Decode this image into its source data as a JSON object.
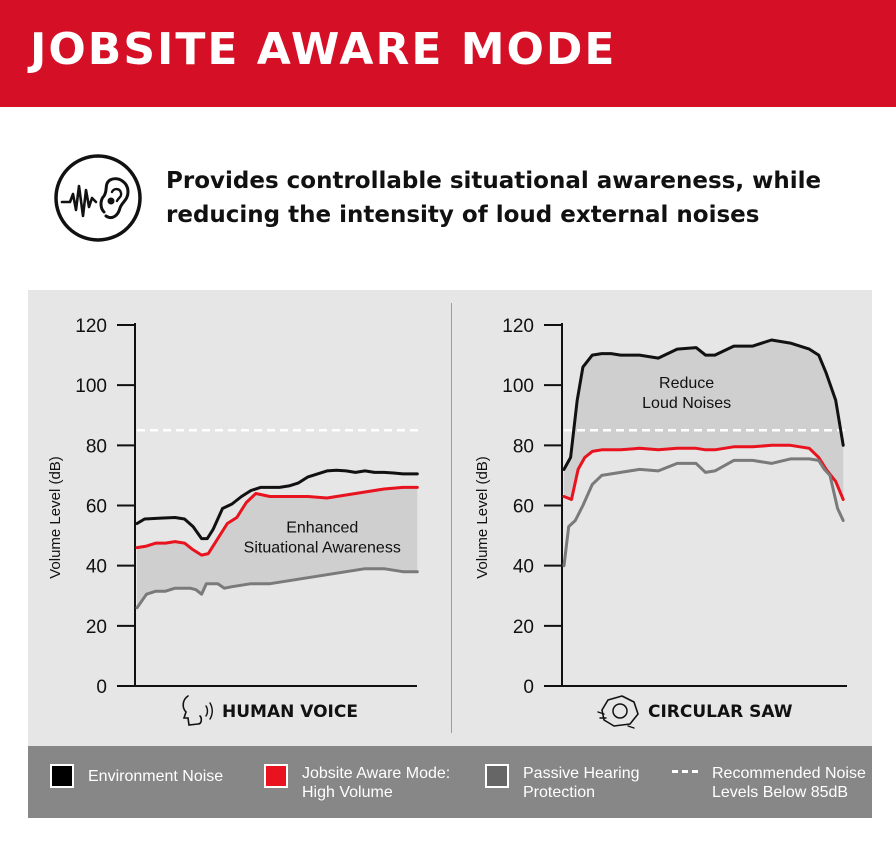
{
  "header": {
    "title": "JOBSITE AWARE MODE"
  },
  "intro": {
    "icon": "ear-sound-icon",
    "line1": "Provides controllable situational awareness, while",
    "line2": "reducing the intensity of loud external noises"
  },
  "colors": {
    "brand_red": "#d50f25",
    "environment": "#111111",
    "aware_mode": "#e8131f",
    "passive": "#7a7a7a",
    "recommended": "#ffffff",
    "panel_bg": "#e6e6e6",
    "shade": "#cfcfcf",
    "legend_bg": "#878787"
  },
  "chart_data": [
    {
      "type": "line",
      "title": "HUMAN VOICE",
      "icon": "human-voice-icon",
      "ylabel": "Volume Level (dB)",
      "xlabel": "",
      "ylim": [
        0,
        120
      ],
      "yticks": [
        0,
        20,
        40,
        60,
        80,
        100,
        120
      ],
      "xlim": [
        0,
        30
      ],
      "grid": false,
      "reference_line": {
        "name": "Recommended Noise Levels Below 85dB",
        "y": 85
      },
      "annotation": {
        "line1": "Enhanced",
        "line2": "Situational Awareness",
        "x": 19.5,
        "y": 51
      },
      "shade_between": [
        "Passive Hearing Protection",
        "Jobsite Aware Mode: High Volume"
      ],
      "series": [
        {
          "name": "Environment Noise",
          "x": [
            0,
            0.8,
            2.5,
            4,
            5,
            5.9,
            6.8,
            7.4,
            8,
            9,
            10,
            11,
            12,
            13,
            15,
            16,
            17,
            18,
            19,
            20,
            21,
            22,
            23,
            24,
            25,
            26,
            27,
            28,
            29.5
          ],
          "y": [
            54,
            55.5,
            55.8,
            56,
            55.5,
            53,
            49,
            49,
            52,
            59,
            60.5,
            63,
            65,
            66,
            66,
            66.5,
            67.5,
            69.5,
            70.5,
            71.5,
            71.7,
            71.5,
            71,
            71.5,
            71,
            71,
            70.8,
            70.5,
            70.5
          ]
        },
        {
          "name": "Jobsite Aware Mode: High Volume",
          "x": [
            0,
            1,
            2,
            3,
            4,
            5,
            5.8,
            6.8,
            7.5,
            8.5,
            9.5,
            10.5,
            11.5,
            12.5,
            14,
            16,
            18,
            20,
            22,
            24,
            26,
            28,
            29.5
          ],
          "y": [
            46,
            46.5,
            47.5,
            47.5,
            48,
            47.5,
            45.5,
            43.5,
            44,
            49,
            54,
            56,
            61,
            64,
            63,
            63,
            63,
            62.5,
            63.5,
            64.5,
            65.5,
            66,
            66
          ]
        },
        {
          "name": "Passive Hearing Protection",
          "x": [
            0,
            1,
            2,
            3,
            4,
            5,
            5.6,
            6.2,
            6.8,
            7.3,
            7.8,
            8.5,
            9.2,
            10,
            12,
            14,
            16,
            18,
            20,
            22,
            24,
            26,
            27,
            28,
            29.5
          ],
          "y": [
            26,
            30.5,
            31.5,
            31.5,
            32.5,
            32.5,
            32.5,
            32,
            30.5,
            34,
            34,
            34,
            32.5,
            33,
            34,
            34,
            35,
            36,
            37,
            38,
            39,
            39,
            38.5,
            38,
            38
          ]
        }
      ]
    },
    {
      "type": "line",
      "title": "CIRCULAR SAW",
      "icon": "circular-saw-icon",
      "ylabel": "Volume Level (dB)",
      "xlabel": "",
      "ylim": [
        0,
        120
      ],
      "yticks": [
        0,
        20,
        40,
        60,
        80,
        100,
        120
      ],
      "xlim": [
        0,
        30
      ],
      "grid": false,
      "reference_line": {
        "name": "Recommended Noise Levels Below 85dB",
        "y": 85
      },
      "annotation": {
        "line1": "Reduce",
        "line2": "Loud Noises",
        "x": 13,
        "y": 99
      },
      "shade_between": [
        "Jobsite Aware Mode: High Volume",
        "Environment Noise"
      ],
      "series": [
        {
          "name": "Environment Noise",
          "x": [
            0,
            0.7,
            1.4,
            2,
            3,
            4,
            5,
            6,
            8,
            10,
            12,
            14,
            15,
            16,
            18,
            20,
            22,
            24,
            25,
            26,
            27,
            27.8,
            28.8,
            29.6
          ],
          "y": [
            72,
            76,
            95,
            106,
            110,
            110.5,
            110.5,
            110,
            110,
            109,
            112,
            112.5,
            110,
            110,
            113,
            113,
            115,
            114,
            113,
            112,
            110,
            104,
            95,
            80
          ]
        },
        {
          "name": "Jobsite Aware Mode: High Volume",
          "x": [
            0,
            0.8,
            1.5,
            2.2,
            3,
            4,
            6,
            8,
            10,
            12,
            14,
            15,
            16,
            18,
            20,
            22,
            24,
            25,
            26,
            27,
            27.8,
            28.8,
            29.6
          ],
          "y": [
            63,
            62,
            72,
            76,
            78,
            78.5,
            78.5,
            79,
            78.5,
            79,
            79,
            78.5,
            78.5,
            79.5,
            79.5,
            80,
            80,
            79.5,
            79,
            76,
            72,
            68,
            62
          ]
        },
        {
          "name": "Passive Hearing Protection",
          "x": [
            0,
            0.5,
            1.2,
            2,
            3,
            4,
            6,
            8,
            10,
            12,
            14,
            15,
            16,
            18,
            20,
            22,
            24,
            25,
            26,
            27,
            27.6,
            28.2,
            29,
            29.6
          ],
          "y": [
            40,
            53,
            55,
            60,
            67,
            70,
            71,
            72,
            71.5,
            74,
            74,
            71,
            71.5,
            75,
            75,
            74,
            75.5,
            75.5,
            75.5,
            75,
            72,
            70,
            59,
            55
          ]
        }
      ]
    }
  ],
  "legend": {
    "items": [
      {
        "key": "environment",
        "line1": "Environment Noise",
        "line2": ""
      },
      {
        "key": "aware",
        "line1": "Jobsite Aware Mode:",
        "line2": "High Volume"
      },
      {
        "key": "passive",
        "line1": "Passive Hearing",
        "line2": "Protection"
      },
      {
        "key": "recommended",
        "line1": "Recommended Noise",
        "line2": "Levels Below 85dB"
      }
    ]
  }
}
